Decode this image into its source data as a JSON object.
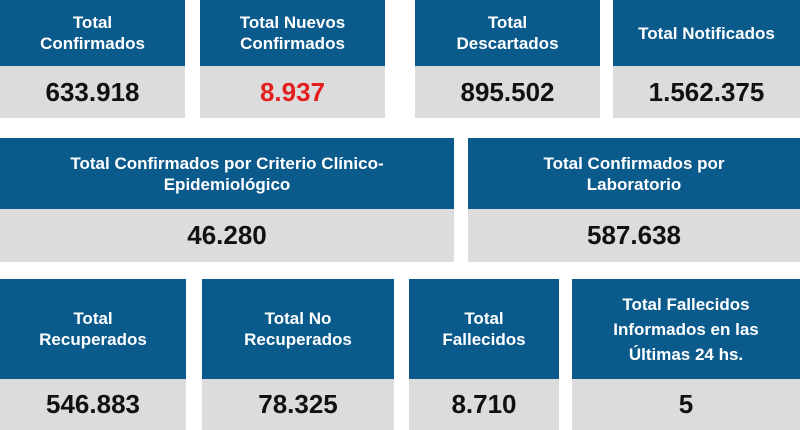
{
  "cards": [
    {
      "label": "Total\nConfirmados",
      "value": "633.918"
    },
    {
      "label": "Total Nuevos\nConfirmados",
      "value": "8.937",
      "value_color": "#e41f1f"
    },
    {
      "label": "Total\nDescartados",
      "value": "895.502"
    },
    {
      "label": "Total Notificados",
      "value": "1.562.375"
    },
    {
      "label": "Total Confirmados por Criterio Clínico-\nEpidemiológico",
      "value": "46.280"
    },
    {
      "label": "Total Confirmados por\nLaboratorio",
      "value": "587.638"
    },
    {
      "label": "Total\nRecuperados",
      "value": "546.883"
    },
    {
      "label": "Total No\nRecuperados",
      "value": "78.325"
    },
    {
      "label": "Total\nFallecidos",
      "value": "8.710"
    },
    {
      "label": "Total Fallecidos\nInformados en las\nÚltimas 24 hs.",
      "value": "5"
    }
  ],
  "colors": {
    "header_bg": "#0b5a8c",
    "value_bg": "#dcdcdc",
    "value_text": "#111111",
    "highlight": "#e41f1f"
  }
}
